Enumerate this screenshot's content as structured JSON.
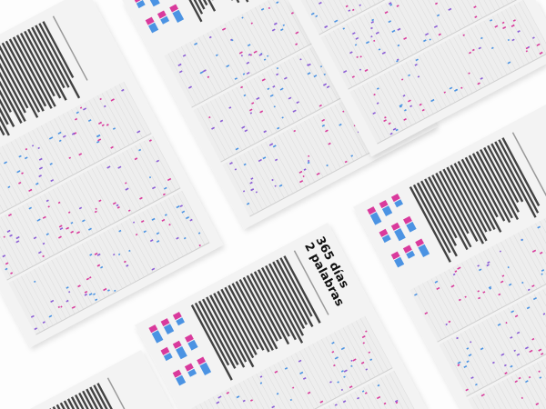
{
  "poster": {
    "title_line1": "365 días",
    "title_line2": "2 palabras",
    "background_color": "#f3f3f3",
    "text_color": "#222222"
  },
  "colors": {
    "pink": "#d93a9c",
    "blue": "#4b93e3",
    "purple": "#8b5cd6"
  },
  "layout_description_hidden": ""
}
